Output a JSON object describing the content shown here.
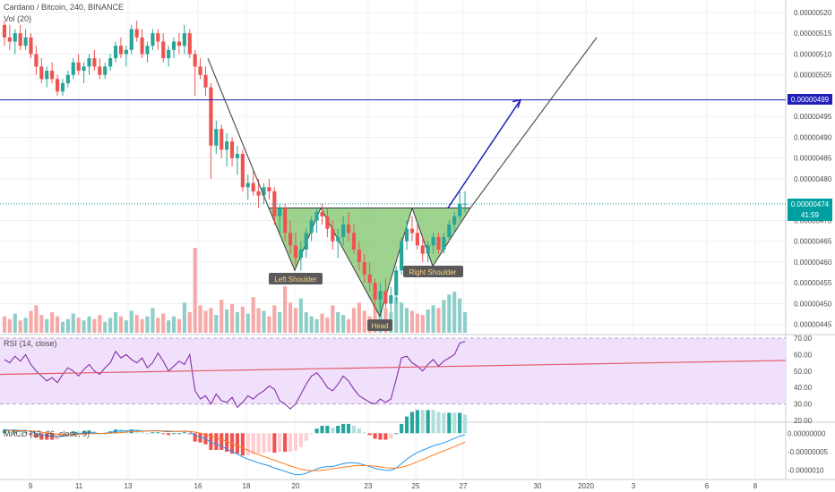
{
  "header": {
    "symbol": "Cardano / Bitcoin, 240, BINANCE",
    "volume_label": "Vol (20)",
    "rsi_label": "RSI (14, close)",
    "macd_label": "MACD (12, 26, close, 9)"
  },
  "colors": {
    "up": "#26a69a",
    "down": "#ef5350",
    "vol_up": "#8dcfc8",
    "vol_down": "#f7a9a7",
    "blue_level": "#1f1fb8",
    "pattern_fill": "#7cc36a",
    "rsi_band": "#f0e0fb",
    "rsi_line": "#7b1fa2",
    "rsi_trend": "#e55a6b",
    "macd_line": "#2196f3",
    "signal_line": "#ff7a1a",
    "gray_line": "#555555",
    "price_tag": "#00a0a0"
  },
  "price_axis": {
    "ticks": [
      "0.00000520",
      "0.00000515",
      "0.00000510",
      "0.00000505",
      "0.00000495",
      "0.00000490",
      "0.00000485",
      "0.00000480",
      "0.00000470",
      "0.00000465",
      "0.00000460",
      "0.00000455",
      "0.00000450",
      "0.00000445"
    ],
    "tag_level": "0.00000499",
    "tag_current": "0.00000474",
    "countdown": "41:59"
  },
  "rsi_axis": {
    "ticks": [
      "70.00",
      "60.00",
      "50.00",
      "40.00",
      "30.00",
      "20.00"
    ]
  },
  "macd_axis": {
    "ticks": [
      "0.00000000",
      "-0.00000005",
      "-0.0000010"
    ]
  },
  "time_axis": {
    "ticks": [
      "9",
      "11",
      "13",
      "16",
      "18",
      "20",
      "23",
      "25",
      "27",
      "30",
      "2020",
      "3",
      "6",
      "8"
    ]
  },
  "annotations": {
    "left_shoulder": "Left Shoulder",
    "head": "Head",
    "right_shoulder": "Right Shoulder"
  },
  "chart_data": {
    "type": "candlestick",
    "instrument": "Cardano / Bitcoin",
    "timeframe": "240",
    "exchange": "BINANCE",
    "ylim": [
      4.43e-06,
      5.23e-06
    ],
    "horizontal_level": 4.99e-06,
    "current_price": 4.74e-06,
    "candles": [
      [
        5.17e-06,
        5.18e-06,
        5.12e-06,
        5.14e-06
      ],
      [
        5.14e-06,
        5.17e-06,
        5.11e-06,
        5.13e-06
      ],
      [
        5.13e-06,
        5.16e-06,
        5.1e-06,
        5.15e-06
      ],
      [
        5.15e-06,
        5.17e-06,
        5.11e-06,
        5.12e-06
      ],
      [
        5.12e-06,
        5.16e-06,
        5.11e-06,
        5.14e-06
      ],
      [
        5.14e-06,
        5.15e-06,
        5.09e-06,
        5.1e-06
      ],
      [
        5.1e-06,
        5.12e-06,
        5.05e-06,
        5.07e-06
      ],
      [
        5.07e-06,
        5.09e-06,
        5.03e-06,
        5.04e-06
      ],
      [
        5.04e-06,
        5.07e-06,
        5.02e-06,
        5.06e-06
      ],
      [
        5.06e-06,
        5.08e-06,
        5.03e-06,
        5.04e-06
      ],
      [
        5.04e-06,
        5.05e-06,
        5e-06,
        5.01e-06
      ],
      [
        5.01e-06,
        5.04e-06,
        5e-06,
        5.03e-06
      ],
      [
        5.03e-06,
        5.06e-06,
        5.02e-06,
        5.05e-06
      ],
      [
        5.05e-06,
        5.09e-06,
        5.04e-06,
        5.08e-06
      ],
      [
        5.08e-06,
        5.1e-06,
        5.05e-06,
        5.06e-06
      ],
      [
        5.06e-06,
        5.08e-06,
        5.03e-06,
        5.07e-06
      ],
      [
        5.07e-06,
        5.1e-06,
        5.05e-06,
        5.09e-06
      ],
      [
        5.09e-06,
        5.11e-06,
        5.06e-06,
        5.07e-06
      ],
      [
        5.07e-06,
        5.09e-06,
        5.04e-06,
        5.05e-06
      ],
      [
        5.05e-06,
        5.08e-06,
        5.04e-06,
        5.07e-06
      ],
      [
        5.07e-06,
        5.1e-06,
        5.06e-06,
        5.09e-06
      ],
      [
        5.09e-06,
        5.13e-06,
        5.08e-06,
        5.12e-06
      ],
      [
        5.12e-06,
        5.14e-06,
        5.09e-06,
        5.1e-06
      ],
      [
        5.1e-06,
        5.12e-06,
        5.07e-06,
        5.11e-06
      ],
      [
        5.11e-06,
        5.17e-06,
        5.1e-06,
        5.16e-06
      ],
      [
        5.16e-06,
        5.18e-06,
        5.13e-06,
        5.14e-06
      ],
      [
        5.14e-06,
        5.16e-06,
        5.09e-06,
        5.1e-06
      ],
      [
        5.1e-06,
        5.13e-06,
        5.08e-06,
        5.12e-06
      ],
      [
        5.12e-06,
        5.16e-06,
        5.11e-06,
        5.15e-06
      ],
      [
        5.15e-06,
        5.16e-06,
        5.11e-06,
        5.13e-06
      ],
      [
        5.13e-06,
        5.15e-06,
        5.08e-06,
        5.09e-06
      ],
      [
        5.09e-06,
        5.12e-06,
        5.07e-06,
        5.11e-06
      ],
      [
        5.11e-06,
        5.14e-06,
        5.09e-06,
        5.13e-06
      ],
      [
        5.13e-06,
        5.15e-06,
        5.1e-06,
        5.12e-06
      ],
      [
        5.12e-06,
        5.17e-06,
        5.1e-06,
        5.15e-06
      ],
      [
        5.15e-06,
        5.16e-06,
        5.09e-06,
        5.1e-06
      ],
      [
        5.1e-06,
        5.11e-06,
        5e-06,
        5.07e-06
      ],
      [
        5.07e-06,
        5.09e-06,
        5.04e-06,
        5.05e-06
      ],
      [
        5.05e-06,
        5.07e-06,
        5e-06,
        5.02e-06
      ],
      [
        5.02e-06,
        5.03e-06,
        4.8e-06,
        4.88e-06
      ],
      [
        4.88e-06,
        4.94e-06,
        4.86e-06,
        4.92e-06
      ],
      [
        4.92e-06,
        4.93e-06,
        4.85e-06,
        4.87e-06
      ],
      [
        4.87e-06,
        4.91e-06,
        4.83e-06,
        4.89e-06
      ],
      [
        4.89e-06,
        4.9e-06,
        4.83e-06,
        4.85e-06
      ],
      [
        4.85e-06,
        4.88e-06,
        4.81e-06,
        4.86e-06
      ],
      [
        4.86e-06,
        4.87e-06,
        4.77e-06,
        4.78e-06
      ],
      [
        4.78e-06,
        4.81e-06,
        4.75e-06,
        4.79e-06
      ],
      [
        4.79e-06,
        4.82e-06,
        4.76e-06,
        4.77e-06
      ],
      [
        4.77e-06,
        4.8e-06,
        4.73e-06,
        4.76e-06
      ],
      [
        4.76e-06,
        4.79e-06,
        4.74e-06,
        4.78e-06
      ],
      [
        4.78e-06,
        4.8e-06,
        4.75e-06,
        4.77e-06
      ],
      [
        4.77e-06,
        4.78e-06,
        4.69e-06,
        4.71e-06
      ],
      [
        4.71e-06,
        4.74e-06,
        4.67e-06,
        4.73e-06
      ],
      [
        4.73e-06,
        4.74e-06,
        4.65e-06,
        4.67e-06
      ],
      [
        4.67e-06,
        4.7e-06,
        4.62e-06,
        4.64e-06
      ],
      [
        4.64e-06,
        4.67e-06,
        4.59e-06,
        4.61e-06
      ],
      [
        4.61e-06,
        4.65e-06,
        4.58e-06,
        4.63e-06
      ],
      [
        4.63e-06,
        4.68e-06,
        4.61e-06,
        4.67e-06
      ],
      [
        4.67e-06,
        4.71e-06,
        4.65e-06,
        4.7e-06
      ],
      [
        4.7e-06,
        4.73e-06,
        4.67e-06,
        4.72e-06
      ],
      [
        4.72e-06,
        4.74e-06,
        4.69e-06,
        4.71e-06
      ],
      [
        4.71e-06,
        4.73e-06,
        4.66e-06,
        4.68e-06
      ],
      [
        4.68e-06,
        4.7e-06,
        4.63e-06,
        4.65e-06
      ],
      [
        4.65e-06,
        4.68e-06,
        4.61e-06,
        4.66e-06
      ],
      [
        4.66e-06,
        4.71e-06,
        4.64e-06,
        4.69e-06
      ],
      [
        4.69e-06,
        4.72e-06,
        4.65e-06,
        4.67e-06
      ],
      [
        4.67e-06,
        4.69e-06,
        4.62e-06,
        4.63e-06
      ],
      [
        4.63e-06,
        4.65e-06,
        4.58e-06,
        4.6e-06
      ],
      [
        4.6e-06,
        4.62e-06,
        4.55e-06,
        4.57e-06
      ],
      [
        4.57e-06,
        4.6e-06,
        4.53e-06,
        4.55e-06
      ],
      [
        4.55e-06,
        4.56e-06,
        4.49e-06,
        4.51e-06
      ],
      [
        4.51e-06,
        4.55e-06,
        4.48e-06,
        4.53e-06
      ],
      [
        4.53e-06,
        4.56e-06,
        4.49e-06,
        4.5e-06
      ],
      [
        4.5e-06,
        4.54e-06,
        4.48e-06,
        4.52e-06
      ],
      [
        4.52e-06,
        4.59e-06,
        4.5e-06,
        4.58e-06
      ],
      [
        4.58e-06,
        4.66e-06,
        4.57e-06,
        4.65e-06
      ],
      [
        4.65e-06,
        4.7e-06,
        4.63e-06,
        4.68e-06
      ],
      [
        4.68e-06,
        4.71e-06,
        4.65e-06,
        4.67e-06
      ],
      [
        4.67e-06,
        4.69e-06,
        4.63e-06,
        4.64e-06
      ],
      [
        4.64e-06,
        4.66e-06,
        4.6e-06,
        4.62e-06
      ],
      [
        4.62e-06,
        4.65e-06,
        4.6e-06,
        4.64e-06
      ],
      [
        4.64e-06,
        4.67e-06,
        4.62e-06,
        4.66e-06
      ],
      [
        4.66e-06,
        4.67e-06,
        4.62e-06,
        4.63e-06
      ],
      [
        4.63e-06,
        4.67e-06,
        4.62e-06,
        4.66e-06
      ],
      [
        4.66e-06,
        4.7e-06,
        4.65e-06,
        4.69e-06
      ],
      [
        4.69e-06,
        4.72e-06,
        4.67e-06,
        4.71e-06
      ],
      [
        4.71e-06,
        4.77e-06,
        4.7e-06,
        4.74e-06
      ],
      [
        4.74e-06,
        4.77e-06,
        4.72e-06,
        4.74e-06
      ]
    ],
    "volume": [
      12,
      10,
      14,
      9,
      11,
      16,
      20,
      13,
      10,
      15,
      12,
      8,
      10,
      14,
      11,
      9,
      12,
      10,
      13,
      8,
      11,
      15,
      12,
      9,
      16,
      13,
      10,
      12,
      18,
      11,
      14,
      9,
      12,
      10,
      22,
      15,
      62,
      20,
      16,
      18,
      13,
      24,
      17,
      21,
      15,
      19,
      14,
      26,
      18,
      16,
      12,
      20,
      15,
      34,
      22,
      18,
      25,
      15,
      12,
      10,
      14,
      11,
      20,
      15,
      13,
      10,
      18,
      22,
      16,
      12,
      20,
      24,
      18,
      15,
      26,
      22,
      18,
      16,
      14,
      13,
      17,
      20,
      18,
      24,
      28,
      30,
      25,
      15
    ],
    "rsi": {
      "ylim": [
        20,
        70
      ],
      "bands": [
        30,
        70
      ],
      "values": [
        57,
        55,
        59,
        56,
        60,
        54,
        50,
        47,
        44,
        46,
        43,
        48,
        52,
        50,
        47,
        51,
        54,
        50,
        48,
        52,
        55,
        62,
        58,
        60,
        57,
        55,
        58,
        52,
        55,
        61,
        56,
        50,
        53,
        56,
        54,
        60,
        38,
        33,
        35,
        30,
        36,
        32,
        31,
        34,
        28,
        31,
        35,
        33,
        36,
        38,
        41,
        39,
        32,
        30,
        27,
        30,
        36,
        42,
        47,
        49,
        45,
        40,
        38,
        42,
        47,
        44,
        39,
        35,
        33,
        31,
        30,
        33,
        31,
        33,
        45,
        58,
        59,
        55,
        53,
        50,
        54,
        57,
        53,
        56,
        58,
        60,
        67,
        68
      ],
      "trendline": [
        {
          "x": 0,
          "y": 48
        },
        {
          "x": 87,
          "y": 53
        }
      ]
    },
    "macd": {
      "ylim": [
        -1.2e-06,
        2e-07
      ],
      "macd": [
        1e-07,
        8e-08,
        9e-08,
        7e-08,
        8e-08,
        4e-08,
        0.0,
        -4e-08,
        -6e-08,
        -8e-08,
        -1e-07,
        -8e-08,
        -5e-08,
        -2e-08,
        -1e-08,
        0.0,
        2e-08,
        1e-08,
        -1e-08,
        0.0,
        2e-08,
        5e-08,
        6e-08,
        6e-08,
        8e-08,
        8e-08,
        6e-08,
        6e-08,
        7e-08,
        7e-08,
        5e-08,
        4e-08,
        5e-08,
        5e-08,
        6e-08,
        4e-08,
        -6e-08,
        -1e-07,
        -1.5e-07,
        -2.5e-07,
        -3e-07,
        -3.5e-07,
        -4.2e-07,
        -5e-07,
        -5.6e-07,
        -6.4e-07,
        -7e-07,
        -7.5e-07,
        -8e-07,
        -8.4e-07,
        -8.8e-07,
        -9.4e-07,
        -9.8e-07,
        -1.03e-06,
        -1.08e-06,
        -1.12e-06,
        -1.12e-06,
        -1.08e-06,
        -1.02e-06,
        -9.6e-07,
        -9.2e-07,
        -9e-07,
        -9e-07,
        -8.6e-07,
        -8.2e-07,
        -8e-07,
        -8e-07,
        -8.2e-07,
        -8.6e-07,
        -9e-07,
        -9.5e-07,
        -9.8e-07,
        -1e-06,
        -1e-06,
        -9.4e-07,
        -8.2e-07,
        -7e-07,
        -6e-07,
        -5.2e-07,
        -4.6e-07,
        -4e-07,
        -3.4e-07,
        -3e-07,
        -2.6e-07,
        -2e-07,
        -1.4e-07,
        -8e-08,
        -4e-08
      ],
      "signal": [
        6e-08,
        7e-08,
        7e-08,
        7e-08,
        7e-08,
        6e-08,
        5e-08,
        3e-08,
        1e-08,
        -1e-08,
        -3e-08,
        -4e-08,
        -4e-08,
        -4e-08,
        -3e-08,
        -2e-08,
        -1e-08,
        -1e-08,
        -1e-08,
        0.0,
        0.0,
        1e-08,
        2e-08,
        3e-08,
        4e-08,
        5e-08,
        5e-08,
        6e-08,
        6e-08,
        6e-08,
        6e-08,
        6e-08,
        5e-08,
        5e-08,
        5e-08,
        5e-08,
        3e-08,
        0.0,
        -3e-08,
        -7e-08,
        -1.2e-07,
        -1.7e-07,
        -2.2e-07,
        -2.8e-07,
        -3.4e-07,
        -4e-07,
        -4.6e-07,
        -5.2e-07,
        -5.8e-07,
        -6.3e-07,
        -6.8e-07,
        -7.3e-07,
        -7.8e-07,
        -8.3e-07,
        -8.8e-07,
        -9.3e-07,
        -9.7e-07,
        -1e-06,
        -1.01e-06,
        -1.01e-06,
        -1e-06,
        -9.8e-07,
        -9.6e-07,
        -9.4e-07,
        -9.2e-07,
        -9e-07,
        -8.8e-07,
        -8.7e-07,
        -8.7e-07,
        -8.8e-07,
        -8.9e-07,
        -9.1e-07,
        -9.3e-07,
        -9.4e-07,
        -9.4e-07,
        -9.2e-07,
        -8.8e-07,
        -8.3e-07,
        -7.7e-07,
        -7.1e-07,
        -6.5e-07,
        -5.9e-07,
        -5.3e-07,
        -4.8e-07,
        -4.2e-07,
        -3.6e-07,
        -3e-07,
        -2.4e-07
      ]
    }
  }
}
